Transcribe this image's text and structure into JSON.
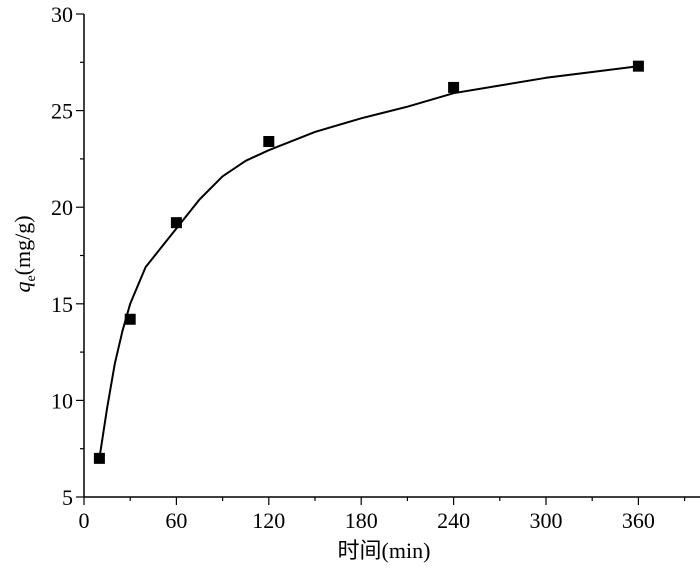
{
  "chart_data": {
    "type": "scatter",
    "xlabel": "时间(min)",
    "ylabel_symbol": "q",
    "ylabel_subscript": "e",
    "ylabel_unit": "(mg/g)",
    "xlim": [
      0,
      400
    ],
    "ylim": [
      5,
      30
    ],
    "xticks": [
      0,
      60,
      120,
      180,
      240,
      300,
      360
    ],
    "yticks": [
      5,
      10,
      15,
      20,
      25,
      30
    ],
    "x_minor_step": 30,
    "y_minor_step": 2.5,
    "grid": false,
    "series": [
      {
        "marker": "square",
        "color": "#000000",
        "x": [
          10,
          30,
          60,
          120,
          240,
          360
        ],
        "y": [
          7.0,
          14.2,
          19.2,
          23.4,
          26.2,
          27.3
        ]
      }
    ],
    "fit_line": {
      "color": "#000000",
      "x": [
        10,
        15,
        20,
        25,
        30,
        40,
        50,
        60,
        75,
        90,
        105,
        120,
        150,
        180,
        210,
        240,
        270,
        300,
        330,
        360
      ],
      "y": [
        7.0,
        9.6,
        11.9,
        13.6,
        15.0,
        16.9,
        17.9,
        18.9,
        20.4,
        21.6,
        22.4,
        22.95,
        23.9,
        24.6,
        25.2,
        25.9,
        26.3,
        26.7,
        27.0,
        27.3
      ]
    }
  }
}
